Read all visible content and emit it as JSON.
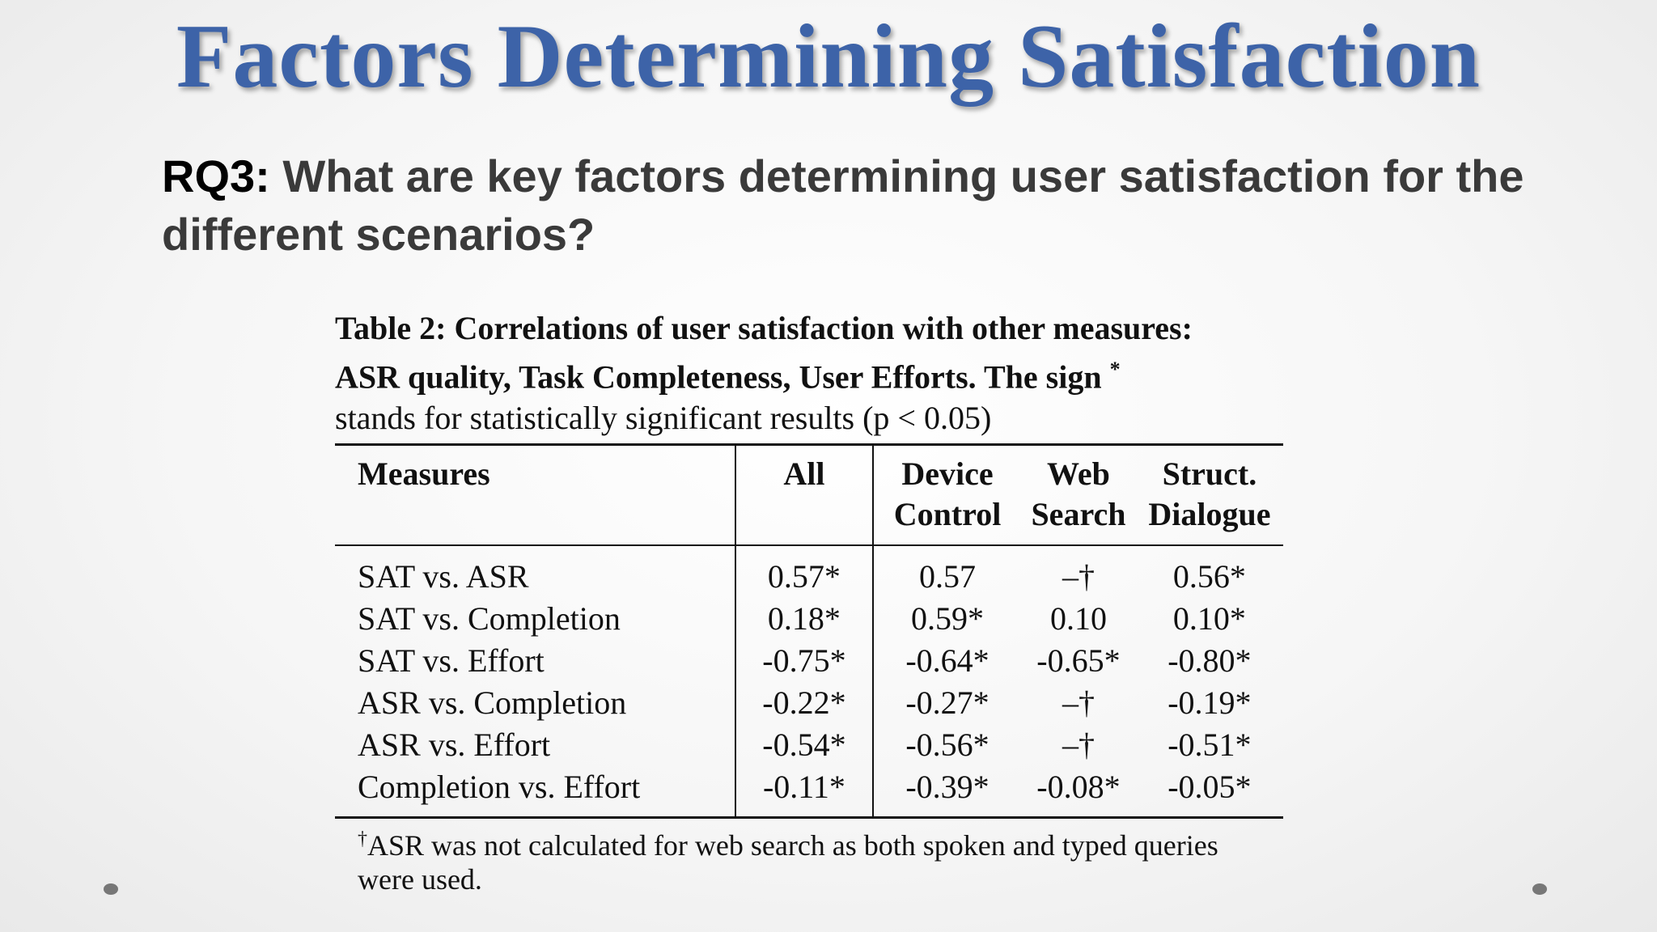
{
  "slide": {
    "title": "Factors Determining Satisfaction",
    "question_label": "RQ3:",
    "question_text": " What are key factors determining user satisfaction for the different scenarios?"
  },
  "table": {
    "caption_lines": [
      "Table 2: Correlations of user satisfaction with other measures:",
      "ASR quality, Task Completeness, User Efforts.  The sign",
      "stands for statistically significant results (p < 0.05)"
    ],
    "sign_mark": "*",
    "headers": {
      "measures": "Measures",
      "all": "All",
      "device_line1": "Device",
      "device_line2": "Control",
      "web_line1": "Web",
      "web_line2": "Search",
      "dialogue_line1": "Struct.",
      "dialogue_line2": "Dialogue"
    },
    "rows": [
      {
        "measure": "SAT vs. ASR",
        "all": "0.57*",
        "device": "0.57",
        "web": "–†",
        "dialogue": "0.56*"
      },
      {
        "measure": "SAT vs. Completion",
        "all": "0.18*",
        "device": "0.59*",
        "web": "0.10",
        "dialogue": "0.10*"
      },
      {
        "measure": "SAT vs. Effort",
        "all": "-0.75*",
        "device": "-0.64*",
        "web": "-0.65*",
        "dialogue": "-0.80*"
      },
      {
        "measure": "ASR vs. Completion",
        "all": "-0.22*",
        "device": "-0.27*",
        "web": "–†",
        "dialogue": "-0.19*"
      },
      {
        "measure": "ASR vs. Effort",
        "all": "-0.54*",
        "device": "-0.56*",
        "web": "–†",
        "dialogue": "-0.51*"
      },
      {
        "measure": "Completion vs. Effort",
        "all": "-0.11*",
        "device": "-0.39*",
        "web": "-0.08*",
        "dialogue": "-0.05*"
      }
    ],
    "footnote_mark": "†",
    "footnote_text": "ASR was not calculated for web search as both spoken and typed queries were used."
  }
}
